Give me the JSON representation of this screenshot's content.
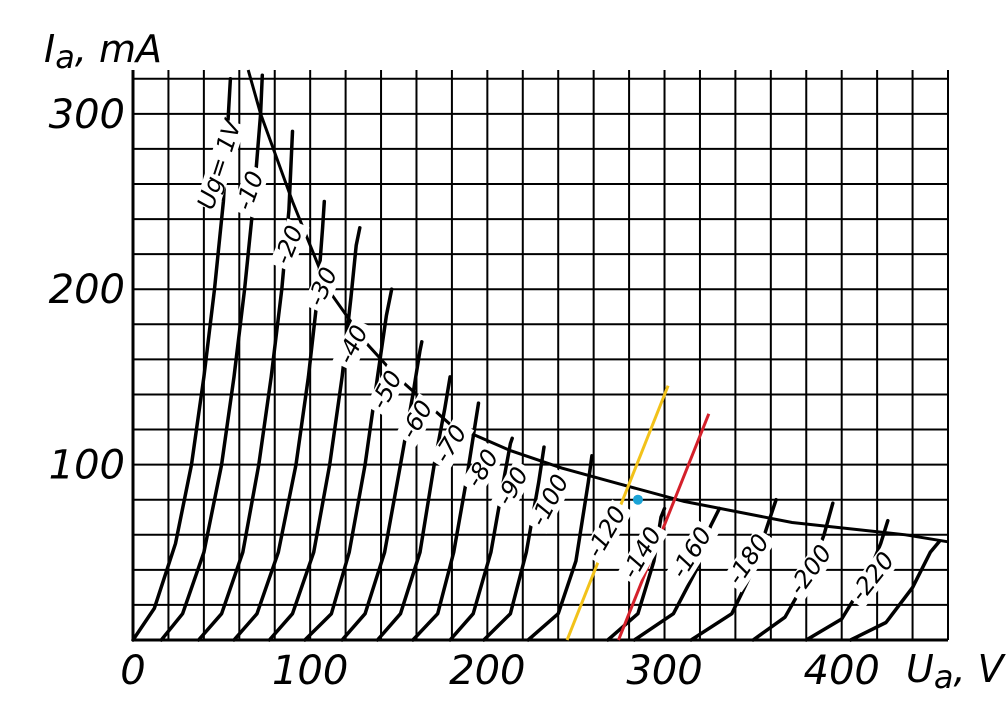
{
  "chart_data": {
    "type": "line",
    "title": "",
    "xlabel": "U_a, V",
    "ylabel": "I_a, mA",
    "x_axis_label": {
      "main": "U",
      "sub": "a",
      "unit": ", V"
    },
    "y_axis_label": {
      "main": "I",
      "sub": "a",
      "unit": ", mA"
    },
    "xlim": [
      0,
      460
    ],
    "ylim": [
      0,
      325
    ],
    "grid": true,
    "x_ticks": [
      0,
      100,
      200,
      300,
      400
    ],
    "x_tick_labels": [
      "0",
      "100",
      "200",
      "300",
      "400"
    ],
    "y_ticks": [
      100,
      200,
      300
    ],
    "y_tick_labels": [
      "100",
      "200",
      "300"
    ],
    "curve_color": "#000000",
    "series": [
      {
        "label": "Ug= 1V",
        "points": [
          [
            0,
            0
          ],
          [
            12,
            18
          ],
          [
            24,
            55
          ],
          [
            33,
            100
          ],
          [
            40,
            150
          ],
          [
            46,
            200
          ],
          [
            51,
            250
          ],
          [
            55,
            320
          ]
        ]
      },
      {
        "label": "-10",
        "points": [
          [
            16,
            0
          ],
          [
            28,
            15
          ],
          [
            40,
            50
          ],
          [
            50,
            100
          ],
          [
            57,
            150
          ],
          [
            63,
            200
          ],
          [
            68,
            250
          ],
          [
            72,
            300
          ],
          [
            73,
            322
          ]
        ]
      },
      {
        "label": "-20",
        "points": [
          [
            37,
            0
          ],
          [
            50,
            15
          ],
          [
            62,
            50
          ],
          [
            71,
            100
          ],
          [
            78,
            150
          ],
          [
            84,
            200
          ],
          [
            88,
            245
          ],
          [
            90,
            290
          ]
        ]
      },
      {
        "label": "-30",
        "points": [
          [
            57,
            0
          ],
          [
            70,
            15
          ],
          [
            82,
            50
          ],
          [
            92,
            100
          ],
          [
            99,
            150
          ],
          [
            104,
            195
          ],
          [
            107,
            235
          ],
          [
            108,
            250
          ]
        ]
      },
      {
        "label": "-40",
        "points": [
          [
            77,
            0
          ],
          [
            90,
            15
          ],
          [
            102,
            50
          ],
          [
            111,
            100
          ],
          [
            118,
            150
          ],
          [
            123,
            195
          ],
          [
            126,
            225
          ],
          [
            128,
            235
          ]
        ]
      },
      {
        "label": "-50",
        "points": [
          [
            97,
            0
          ],
          [
            112,
            15
          ],
          [
            122,
            50
          ],
          [
            131,
            100
          ],
          [
            138,
            150
          ],
          [
            143,
            185
          ],
          [
            146,
            200
          ]
        ]
      },
      {
        "label": "-60",
        "points": [
          [
            118,
            0
          ],
          [
            131,
            15
          ],
          [
            142,
            50
          ],
          [
            151,
            100
          ],
          [
            158,
            140
          ],
          [
            162,
            165
          ],
          [
            163,
            170
          ]
        ]
      },
      {
        "label": "-70",
        "points": [
          [
            138,
            0
          ],
          [
            151,
            15
          ],
          [
            162,
            50
          ],
          [
            170,
            100
          ],
          [
            176,
            132
          ],
          [
            179,
            150
          ]
        ]
      },
      {
        "label": "-80",
        "points": [
          [
            158,
            0
          ],
          [
            172,
            15
          ],
          [
            181,
            50
          ],
          [
            188,
            90
          ],
          [
            193,
            122
          ],
          [
            195,
            135
          ]
        ]
      },
      {
        "label": "-90",
        "points": [
          [
            179,
            0
          ],
          [
            192,
            15
          ],
          [
            202,
            50
          ],
          [
            209,
            90
          ],
          [
            213,
            112
          ],
          [
            214,
            115
          ]
        ]
      },
      {
        "label": "-100",
        "points": [
          [
            198,
            0
          ],
          [
            213,
            15
          ],
          [
            222,
            50
          ],
          [
            229,
            90
          ],
          [
            232,
            110
          ]
        ]
      },
      {
        "label": "-120",
        "points": [
          [
            223,
            0
          ],
          [
            240,
            15
          ],
          [
            250,
            45
          ],
          [
            257,
            90
          ],
          [
            259,
            105
          ]
        ]
      },
      {
        "label": "-140",
        "points": [
          [
            268,
            0
          ],
          [
            285,
            15
          ],
          [
            294,
            45
          ],
          [
            298,
            70
          ],
          [
            300,
            75
          ]
        ]
      },
      {
        "label": "-160",
        "points": [
          [
            283,
            0
          ],
          [
            305,
            15
          ],
          [
            318,
            40
          ],
          [
            326,
            65
          ],
          [
            331,
            75
          ]
        ]
      },
      {
        "label": "-180",
        "points": [
          [
            315,
            0
          ],
          [
            338,
            15
          ],
          [
            350,
            40
          ],
          [
            358,
            65
          ],
          [
            363,
            80
          ]
        ]
      },
      {
        "label": "-200",
        "points": [
          [
            350,
            0
          ],
          [
            368,
            13
          ],
          [
            382,
            38
          ],
          [
            390,
            60
          ],
          [
            395,
            78
          ]
        ]
      },
      {
        "label": "-220",
        "points": [
          [
            380,
            0
          ],
          [
            400,
            12
          ],
          [
            414,
            35
          ],
          [
            422,
            55
          ],
          [
            426,
            68
          ]
        ]
      },
      {
        "label": "",
        "points": [
          [
            405,
            0
          ],
          [
            425,
            10
          ],
          [
            440,
            30
          ],
          [
            450,
            50
          ],
          [
            455,
            56
          ]
        ]
      }
    ],
    "annotations": [
      {
        "kind": "power-limit-curve",
        "color": "#000000",
        "points": [
          [
            65,
            325
          ],
          [
            72,
            300
          ],
          [
            90,
            250
          ],
          [
            110,
            200
          ],
          [
            131,
            170
          ],
          [
            149,
            150
          ],
          [
            179,
            123
          ],
          [
            213,
            108
          ],
          [
            242,
            98
          ],
          [
            271,
            90
          ],
          [
            311,
            79
          ],
          [
            372,
            67
          ],
          [
            436,
            60
          ],
          [
            460,
            56
          ]
        ]
      },
      {
        "kind": "load-line",
        "color": "#f2c21a",
        "points": [
          [
            245,
            0
          ],
          [
            302,
            145
          ]
        ]
      },
      {
        "kind": "load-line",
        "color": "#d4202a",
        "points": [
          [
            274,
            0
          ],
          [
            325,
            129
          ]
        ]
      },
      {
        "kind": "operating-point",
        "color": "#1aa3d6",
        "x": 285,
        "y": 80
      }
    ],
    "curve_label_positions": [
      {
        "text": "Ug= 1V",
        "x": 52,
        "y": 270,
        "angle": -72
      },
      {
        "text": "-10",
        "x": 69,
        "y": 255,
        "angle": -70
      },
      {
        "text": "-20",
        "x": 91,
        "y": 224,
        "angle": -68
      },
      {
        "text": "-30",
        "x": 110,
        "y": 200,
        "angle": -66
      },
      {
        "text": "-40",
        "x": 127,
        "y": 167,
        "angle": -64
      },
      {
        "text": "-50",
        "x": 146,
        "y": 141,
        "angle": -62
      },
      {
        "text": "-60",
        "x": 163,
        "y": 124,
        "angle": -60
      },
      {
        "text": "-70",
        "x": 182,
        "y": 110,
        "angle": -58
      },
      {
        "text": "-80",
        "x": 200,
        "y": 96,
        "angle": -58
      },
      {
        "text": "-90",
        "x": 217,
        "y": 86,
        "angle": -60
      },
      {
        "text": "-100",
        "x": 238,
        "y": 78,
        "angle": -62
      },
      {
        "text": "-120",
        "x": 270,
        "y": 60,
        "angle": -60
      },
      {
        "text": "-140",
        "x": 290,
        "y": 48,
        "angle": -60
      },
      {
        "text": "-160",
        "x": 318,
        "y": 48,
        "angle": -58
      },
      {
        "text": "-180",
        "x": 350,
        "y": 44,
        "angle": -56
      },
      {
        "text": "-200",
        "x": 385,
        "y": 38,
        "angle": -54
      },
      {
        "text": "-220",
        "x": 420,
        "y": 34,
        "angle": -52
      }
    ]
  }
}
